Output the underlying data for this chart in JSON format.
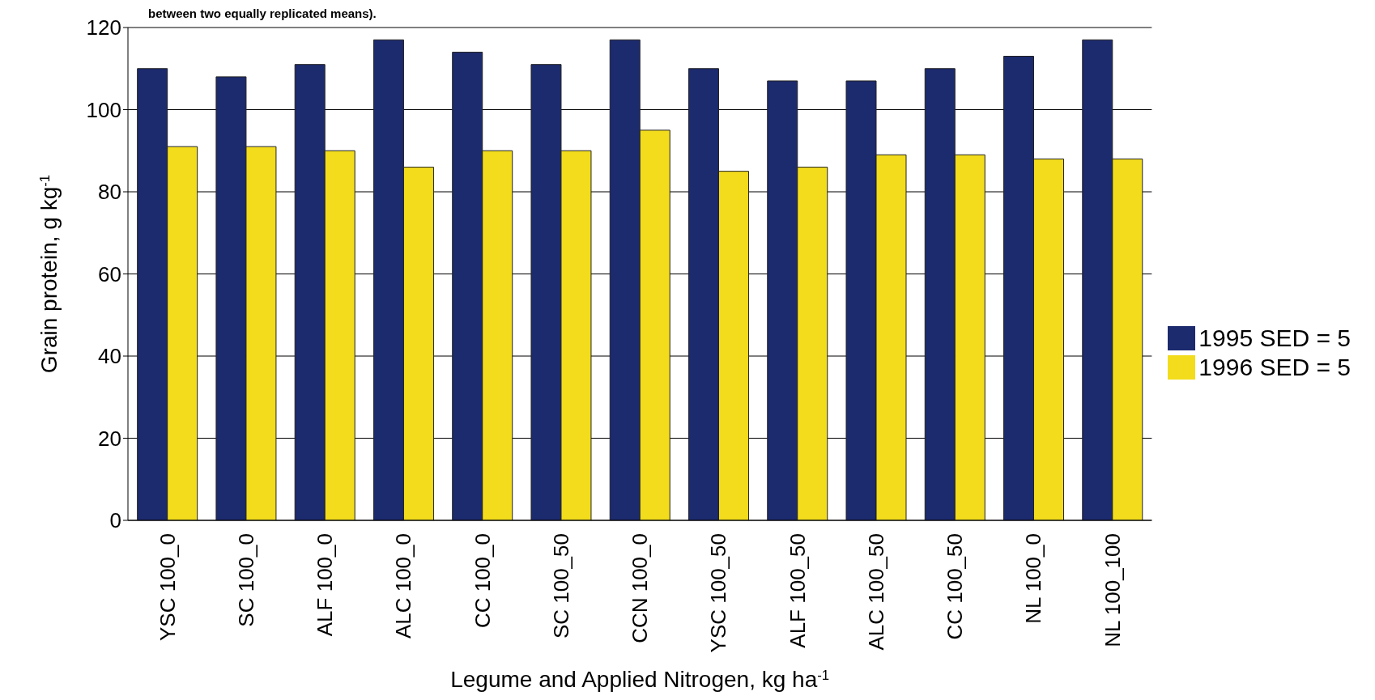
{
  "chart_data": {
    "type": "bar",
    "categories": [
      "YSC 100_0",
      "SC 100_0",
      "ALF 100_0",
      "ALC 100_0",
      "CC 100_0",
      "SC 100_50",
      "CCN 100_0",
      "YSC 100_50",
      "ALF 100_50",
      "ALC 100_50",
      "CC 100_50",
      "NL 100_0",
      "NL 100_100"
    ],
    "series": [
      {
        "name": "1995 SED = 5",
        "color": "#1c2a6e",
        "values": [
          110,
          108,
          111,
          117,
          114,
          111,
          117,
          110,
          107,
          107,
          110,
          113,
          117
        ]
      },
      {
        "name": "1996 SED = 5",
        "color": "#f2dc1c",
        "values": [
          91,
          91,
          90,
          86,
          90,
          90,
          95,
          85,
          86,
          89,
          89,
          88,
          88
        ]
      }
    ],
    "ylim": [
      0,
      120
    ],
    "yticks": [
      0,
      20,
      40,
      60,
      80,
      100,
      120
    ],
    "grid": "y",
    "legend": "right",
    "xlabel": "Legume and Applied Nitrogen, kg ha$^{-1}$",
    "ylabel": "Grain protein, g kg$^{-1}$",
    "annotations": [
      "between two equally replicated means)."
    ]
  }
}
